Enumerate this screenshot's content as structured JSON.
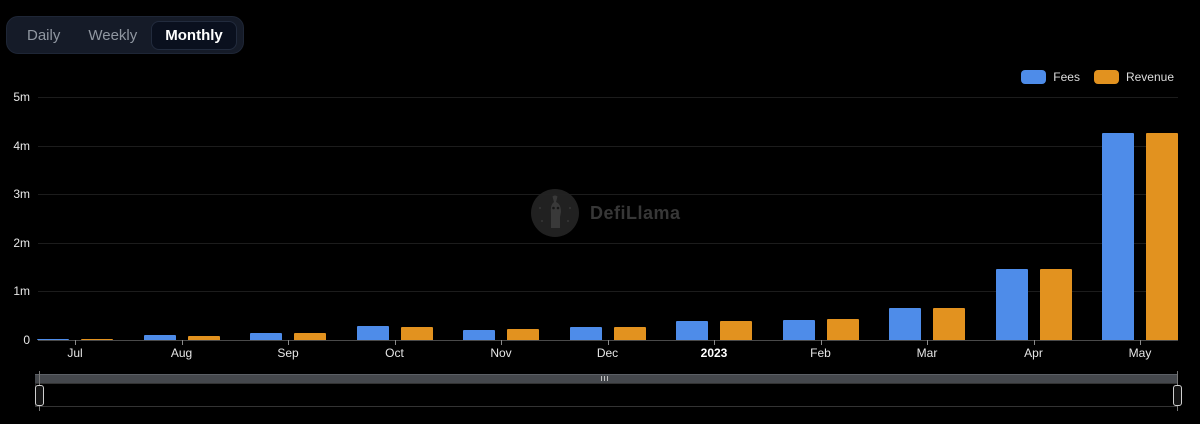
{
  "tabs": {
    "items": [
      {
        "label": "Daily",
        "active": false
      },
      {
        "label": "Weekly",
        "active": false
      },
      {
        "label": "Monthly",
        "active": true
      }
    ]
  },
  "legend": {
    "items": [
      {
        "label": "Fees",
        "color": "#4e8ce9"
      },
      {
        "label": "Revenue",
        "color": "#e2921f"
      }
    ]
  },
  "watermark": {
    "text": "DefiLlama"
  },
  "chart_data": {
    "type": "bar",
    "title": "",
    "categories": [
      "Jul",
      "Aug",
      "Sep",
      "Oct",
      "Nov",
      "Dec",
      "2023",
      "Feb",
      "Mar",
      "Apr",
      "May"
    ],
    "bold_category": "2023",
    "series": [
      {
        "name": "Fees",
        "color": "#4e8ce9",
        "values": [
          0.02,
          0.1,
          0.14,
          0.28,
          0.21,
          0.26,
          0.39,
          0.42,
          0.65,
          1.46,
          4.26
        ]
      },
      {
        "name": "Revenue",
        "color": "#e2921f",
        "values": [
          0.02,
          0.09,
          0.15,
          0.27,
          0.23,
          0.26,
          0.4,
          0.43,
          0.66,
          1.46,
          4.26
        ]
      }
    ],
    "values_unit": "millions",
    "y_tick_labels": [
      "0",
      "1m",
      "2m",
      "3m",
      "4m",
      "5m"
    ],
    "ylim": [
      0,
      5
    ],
    "grid": true,
    "legend_position": "top-right"
  }
}
